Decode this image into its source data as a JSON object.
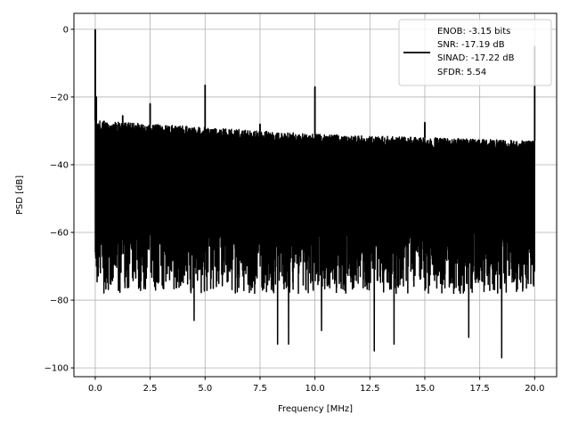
{
  "chart_data": {
    "type": "line",
    "title": "",
    "xlabel": "Frequency [MHz]",
    "ylabel": "PSD [dB]",
    "xlim": [
      -0.97,
      21.0
    ],
    "ylim": [
      -102.6,
      4.7
    ],
    "xticks": [
      0,
      2.5,
      5,
      7.5,
      10,
      12.5,
      15,
      17.5,
      20
    ],
    "xtick_labels": [
      "0.0",
      "2.5",
      "5.0",
      "7.5",
      "10.0",
      "12.5",
      "15.0",
      "17.5",
      "20.0"
    ],
    "yticks": [
      0,
      -20,
      -40,
      -60,
      -80,
      -100
    ],
    "ytick_labels": [
      "0",
      "−20",
      "−40",
      "−60",
      "−80",
      "−100"
    ],
    "grid": true,
    "color": "#000000",
    "x_range": [
      0,
      20
    ],
    "noise_upper_envelope": {
      "x": [
        0,
        5,
        10,
        15,
        20
      ],
      "y": [
        -27,
        -29,
        -31,
        -32,
        -33
      ]
    },
    "noise_lower_typical": -75,
    "deep_dips": {
      "x": [
        4.5,
        8.3,
        8.8,
        10.3,
        12.7,
        13.6,
        17.0,
        18.5
      ],
      "y": [
        -86,
        -93,
        -93,
        -89,
        -95,
        -93,
        -91,
        -97
      ]
    },
    "spikes": {
      "x": [
        0,
        0.05,
        1.25,
        2.5,
        5,
        7.5,
        10,
        15,
        20
      ],
      "y": [
        0,
        -20,
        -25.5,
        -22,
        -16.5,
        -28,
        -17,
        -27.5,
        -5
      ]
    },
    "legend": {
      "placement": "upper right",
      "entries": [
        "ENOB: -3.15 bits",
        "SNR: -17.19 dB",
        "SINAD: -17.22 dB",
        "SFDR: 5.54"
      ]
    }
  }
}
